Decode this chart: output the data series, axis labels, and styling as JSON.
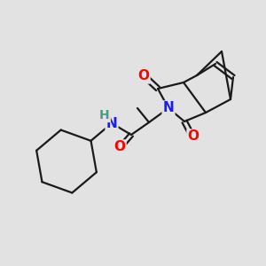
{
  "background_color": "#e2e2e2",
  "bond_color": "#1a1a1a",
  "bond_width": 1.6,
  "atom_colors": {
    "N": "#1a1aff",
    "O": "#ff0000",
    "H": "#4a9a8a",
    "C": "#1a1a1a"
  },
  "font_size_atom": 11,
  "fig_size": [
    3.0,
    3.0
  ],
  "dpi": 100
}
